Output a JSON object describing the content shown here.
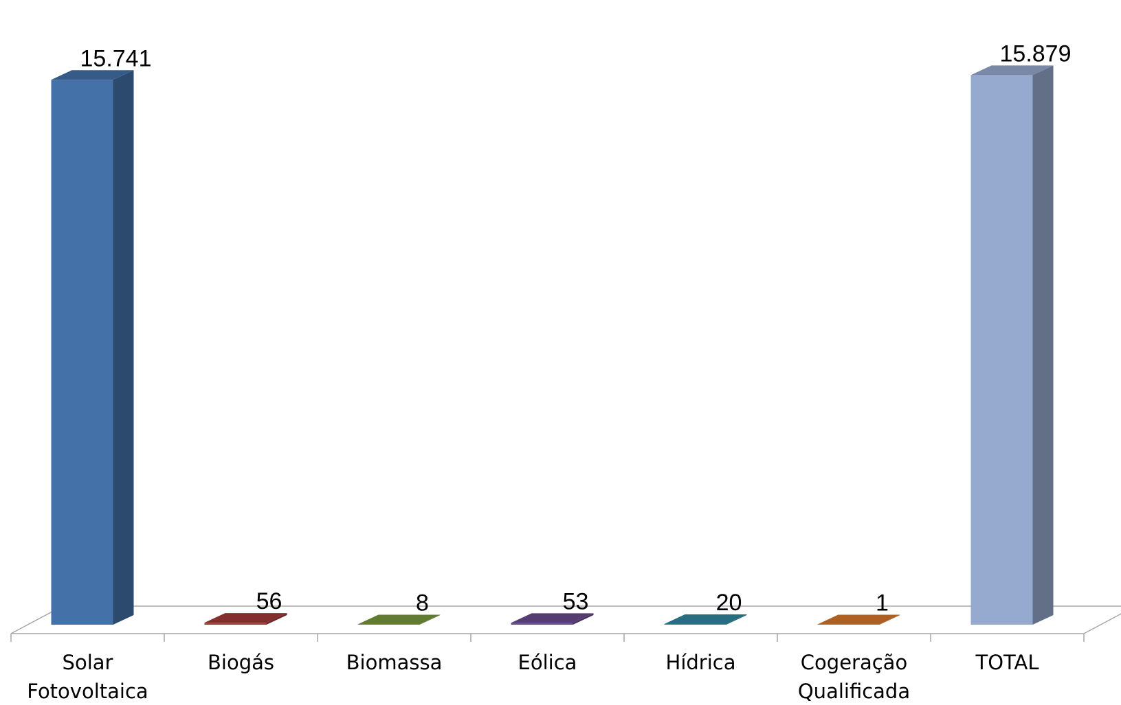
{
  "chart_data": {
    "type": "bar",
    "categories": [
      [
        "Solar",
        "Fotovoltaica"
      ],
      [
        "Biogás"
      ],
      [
        "Biomassa"
      ],
      [
        "Eólica"
      ],
      [
        "Hídrica"
      ],
      [
        "Cogeração",
        "Qualificada"
      ],
      [
        "TOTAL"
      ]
    ],
    "values": [
      15741,
      56,
      8,
      53,
      20,
      1,
      15879
    ],
    "value_labels": [
      "15.741",
      "56",
      "8",
      "53",
      "20",
      "1",
      "15.879"
    ],
    "colors": [
      "#4472a8",
      "#a33b39",
      "#7a9a40",
      "#6a4c8f",
      "#2f8aa0",
      "#d9772a",
      "#96aad0"
    ],
    "ylim": [
      0,
      16500
    ],
    "style": "3d-column",
    "grid": false,
    "legend": false
  }
}
